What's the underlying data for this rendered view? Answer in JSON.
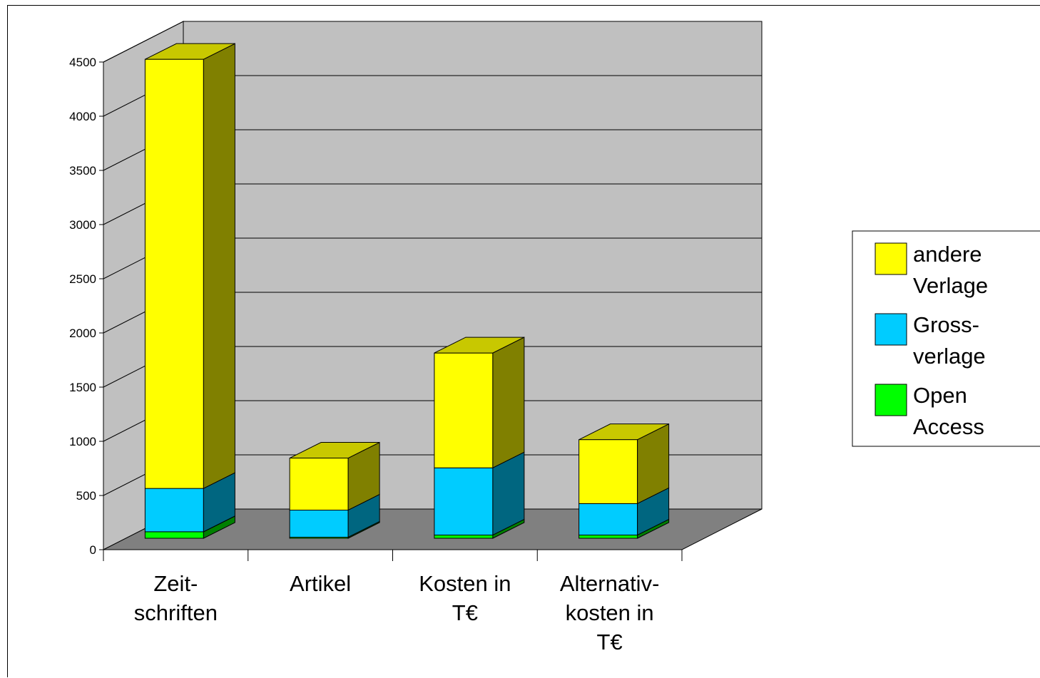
{
  "chart_data": {
    "type": "bar",
    "stacked": true,
    "three_d": true,
    "categories": [
      [
        "Zeit-",
        "schriften"
      ],
      [
        "Artikel"
      ],
      [
        "Kosten in",
        "T€"
      ],
      [
        "Alternativ-",
        "kosten in",
        "T€"
      ]
    ],
    "series": [
      {
        "name": [
          "Open",
          "Access"
        ],
        "values": [
          60,
          10,
          30,
          30
        ],
        "color": "#00ff00",
        "side_color": "#008000"
      },
      {
        "name": [
          "Gross-",
          "verlage"
        ],
        "values": [
          400,
          250,
          620,
          290
        ],
        "color": "#00ccff",
        "side_color": "#006680"
      },
      {
        "name": [
          "andere",
          "Verlage"
        ],
        "values": [
          3960,
          480,
          1060,
          590
        ],
        "color": "#ffff00",
        "side_color": "#808000"
      }
    ],
    "yticks": [
      0,
      500,
      1000,
      1500,
      2000,
      2500,
      3000,
      3500,
      4000,
      4500
    ],
    "ylim": [
      0,
      4500
    ],
    "grid": true,
    "legend_position": "right",
    "wall_color": "#c0c0c0",
    "floor_color": "#808080"
  }
}
